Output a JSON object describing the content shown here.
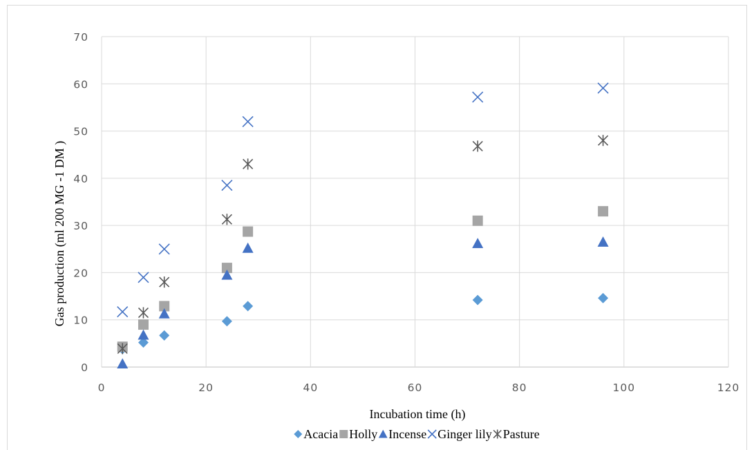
{
  "chart_data": {
    "type": "scatter",
    "title": "",
    "xlabel": "Incubation time (h)",
    "ylabel": "Gas production (ml 200 MG -1 DM )",
    "xlim": [
      0,
      120
    ],
    "ylim": [
      0,
      70
    ],
    "x_ticks": [
      "0",
      "20",
      "40",
      "60",
      "80",
      "100",
      "120"
    ],
    "y_ticks": [
      "0",
      "10",
      "20",
      "30",
      "40",
      "50",
      "60",
      "70"
    ],
    "grid": true,
    "legend_position": "bottom",
    "series": [
      {
        "name": "Acacia",
        "marker": "diamond",
        "color": "#5b9bd5",
        "points": [
          [
            4,
            3.8
          ],
          [
            8,
            5.2
          ],
          [
            12,
            6.7
          ],
          [
            24,
            9.7
          ],
          [
            28,
            12.9
          ],
          [
            72,
            14.2
          ],
          [
            96,
            14.6
          ]
        ]
      },
      {
        "name": "Holly",
        "marker": "square",
        "color": "#a5a5a5",
        "points": [
          [
            4,
            4.3
          ],
          [
            8,
            9.0
          ],
          [
            12,
            12.9
          ],
          [
            24,
            21.0
          ],
          [
            28,
            28.7
          ],
          [
            72,
            31.0
          ],
          [
            96,
            33.0
          ]
        ]
      },
      {
        "name": "Incense",
        "marker": "triangle",
        "color": "#4472c4",
        "points": [
          [
            4,
            0.7
          ],
          [
            8,
            6.8
          ],
          [
            12,
            11.3
          ],
          [
            24,
            19.5
          ],
          [
            28,
            25.2
          ],
          [
            72,
            26.2
          ],
          [
            96,
            26.5
          ]
        ]
      },
      {
        "name": "Ginger lily",
        "marker": "x",
        "color": "#4472c4",
        "points": [
          [
            4,
            11.7
          ],
          [
            8,
            19.0
          ],
          [
            12,
            25.0
          ],
          [
            24,
            38.5
          ],
          [
            28,
            52.0
          ],
          [
            72,
            57.2
          ],
          [
            96,
            59.1
          ]
        ]
      },
      {
        "name": "Pasture",
        "marker": "star",
        "color": "#595959",
        "points": [
          [
            4,
            3.9
          ],
          [
            8,
            11.5
          ],
          [
            12,
            18.0
          ],
          [
            24,
            31.3
          ],
          [
            28,
            43.0
          ],
          [
            72,
            46.8
          ],
          [
            96,
            48.0
          ]
        ]
      }
    ]
  }
}
